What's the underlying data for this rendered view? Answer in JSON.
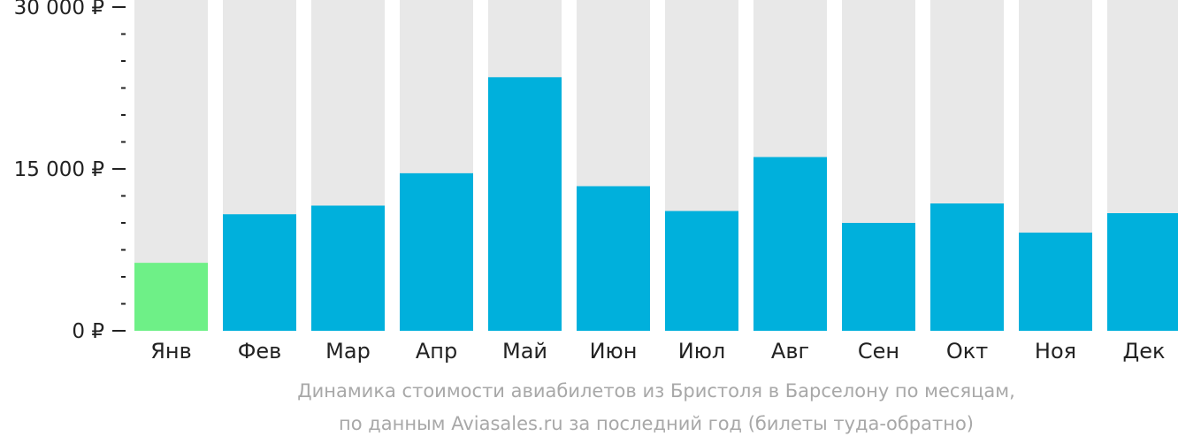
{
  "chart_data": {
    "type": "bar",
    "categories": [
      "Янв",
      "Фев",
      "Мар",
      "Апр",
      "Май",
      "Июн",
      "Июл",
      "Авг",
      "Сен",
      "Окт",
      "Ноя",
      "Дек"
    ],
    "values": [
      6300,
      10800,
      11600,
      14600,
      23500,
      13400,
      11100,
      16100,
      10000,
      11800,
      9100,
      10900
    ],
    "ylim": [
      0,
      30000
    ],
    "y_ticks": [
      {
        "value": 0,
        "label": "0 ₽"
      },
      {
        "value": 15000,
        "label": "15 000 ₽"
      },
      {
        "value": 30000,
        "label": "30 000 ₽"
      }
    ],
    "highlight_index": 0,
    "colors": {
      "bar": "#00b0dc",
      "highlight": "#6ef087",
      "track": "#e8e8e8",
      "axis_text": "#222222"
    },
    "caption_line1": "Динамика стоимости авиабилетов из Бристоля в Барселону по месяцам,",
    "caption_line2": "по данным Aviasales.ru за последний год (билеты туда-обратно)"
  }
}
